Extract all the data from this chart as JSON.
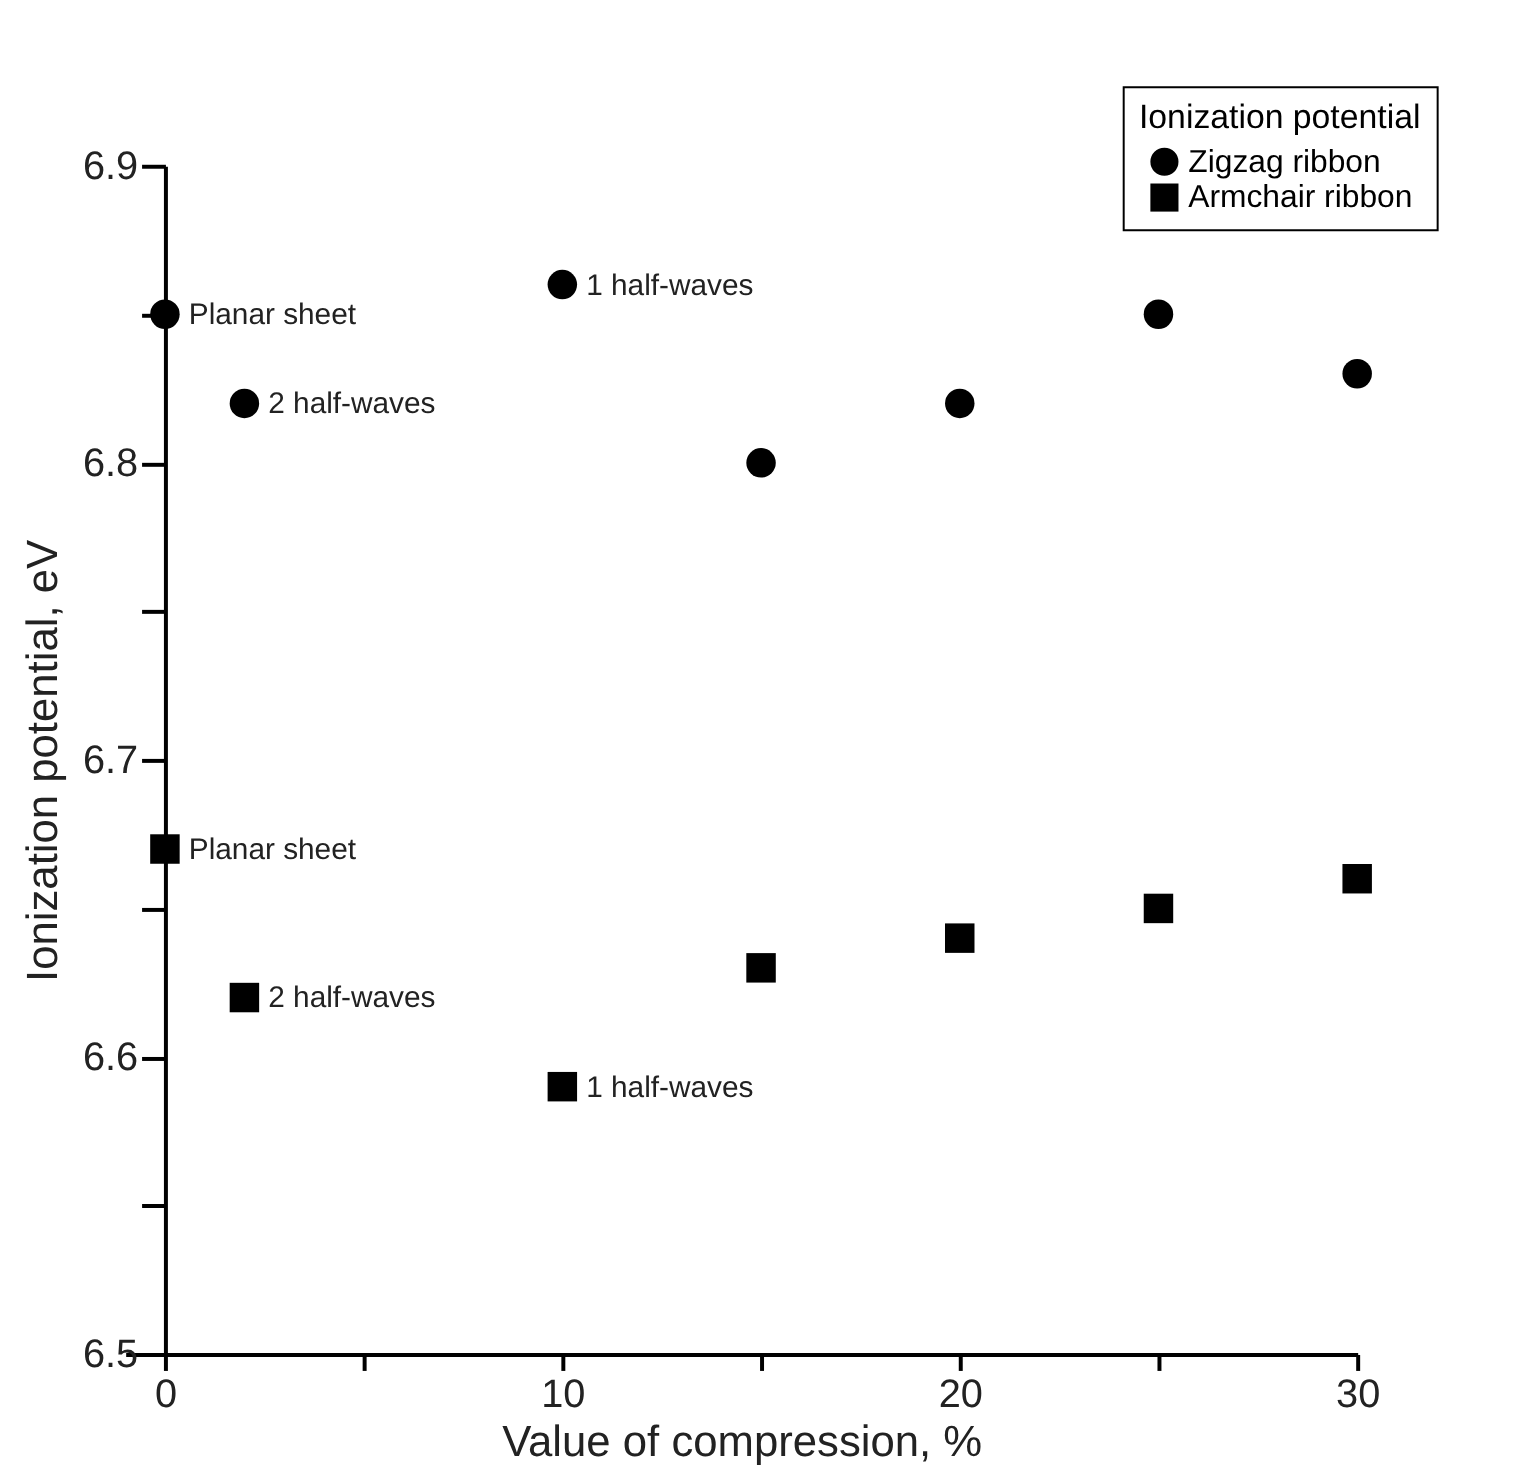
{
  "chart_data": {
    "type": "scatter",
    "xlabel": "Value of compression, %",
    "ylabel": "Ionization potential, eV",
    "legend_title": "Ionization potential",
    "series": [
      {
        "name": "Zigzag ribbon",
        "color": "#000000",
        "marker": "circle",
        "x": [
          0,
          2,
          10,
          15,
          20,
          25,
          30
        ],
        "values": [
          6.85,
          6.82,
          6.86,
          6.8,
          6.82,
          6.85,
          6.83
        ]
      },
      {
        "name": "Armchair ribbon",
        "color": "#000000",
        "marker": "square",
        "x": [
          0,
          2,
          10,
          15,
          20,
          25,
          30
        ],
        "values": [
          6.67,
          6.62,
          6.59,
          6.63,
          6.64,
          6.65,
          6.66
        ]
      }
    ],
    "annotations": [
      {
        "text": "Planar sheet",
        "x": 0,
        "y": 6.85
      },
      {
        "text": "2 half-waves",
        "x": 2,
        "y": 6.82
      },
      {
        "text": "1 half-waves",
        "x": 10,
        "y": 6.86
      },
      {
        "text": "Planar sheet",
        "x": 0,
        "y": 6.67
      },
      {
        "text": "2 half-waves",
        "x": 2,
        "y": 6.62
      },
      {
        "text": "1 half-waves",
        "x": 10,
        "y": 6.59
      }
    ],
    "xlim": [
      -1,
      30
    ],
    "xticks": [
      0,
      {
        "value": 5,
        "label": null
      },
      10,
      {
        "value": 15,
        "label": null
      },
      20,
      {
        "value": 25,
        "label": null
      },
      30
    ],
    "ylim": [
      6.5,
      6.9
    ],
    "yticks": [
      6.5,
      {
        "value": 6.55,
        "label": null
      },
      6.6,
      {
        "value": 6.65,
        "label": null
      },
      6.7,
      {
        "value": 6.75,
        "label": null
      },
      6.8,
      {
        "value": 6.85,
        "label": null
      },
      6.9
    ],
    "grid": false,
    "legend": "top right"
  }
}
